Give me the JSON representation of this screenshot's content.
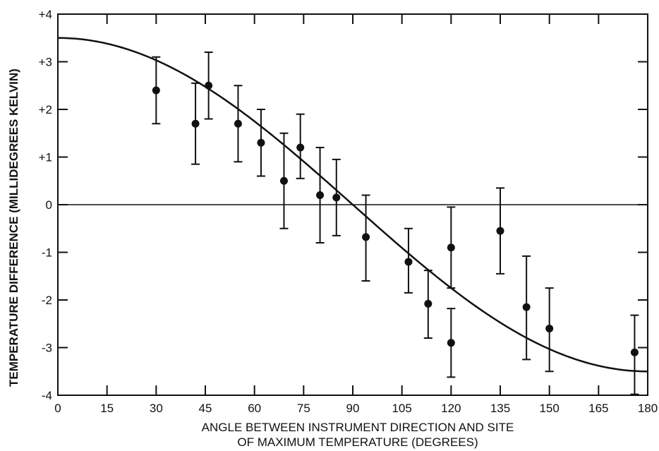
{
  "chart_data": {
    "type": "scatter",
    "title": "",
    "xlabel": [
      "ANGLE BETWEEN INSTRUMENT DIRECTION AND SITE",
      "OF MAXIMUM TEMPERATURE (DEGREES)"
    ],
    "ylabel": "TEMPERATURE DIFFERENCE (MILLIDEGREES KELVIN)",
    "xlim": [
      0,
      180
    ],
    "ylim": [
      -4,
      4
    ],
    "x_ticks": [
      0,
      15,
      30,
      45,
      60,
      75,
      90,
      105,
      120,
      135,
      150,
      165,
      180
    ],
    "x_tick_labels": [
      "0",
      "15",
      "30",
      "45",
      "60",
      "75",
      "90",
      "105",
      "120",
      "135",
      "150",
      "165",
      "180"
    ],
    "y_ticks": [
      4,
      3,
      2,
      1,
      0,
      -1,
      -2,
      -3,
      -4
    ],
    "y_tick_labels": [
      "+4",
      "+3",
      "+2",
      "+1",
      "0",
      "-1",
      "-2",
      "-3",
      "-4"
    ],
    "grid": false,
    "zero_line": true,
    "points": [
      {
        "x": 30,
        "y": 2.4,
        "err_low": 1.7,
        "err_high": 3.1
      },
      {
        "x": 42,
        "y": 1.7,
        "err_low": 0.85,
        "err_high": 2.55
      },
      {
        "x": 46,
        "y": 2.5,
        "err_low": 1.8,
        "err_high": 3.2
      },
      {
        "x": 55,
        "y": 1.7,
        "err_low": 0.9,
        "err_high": 2.5
      },
      {
        "x": 62,
        "y": 1.3,
        "err_low": 0.6,
        "err_high": 2.0
      },
      {
        "x": 69,
        "y": 0.5,
        "err_low": -0.5,
        "err_high": 1.5
      },
      {
        "x": 74,
        "y": 1.2,
        "err_low": 0.55,
        "err_high": 1.9
      },
      {
        "x": 80,
        "y": 0.2,
        "err_low": -0.8,
        "err_high": 1.2
      },
      {
        "x": 85,
        "y": 0.15,
        "err_low": -0.65,
        "err_high": 0.95
      },
      {
        "x": 94,
        "y": -0.68,
        "err_low": -1.6,
        "err_high": 0.2
      },
      {
        "x": 107,
        "y": -1.2,
        "err_low": -1.85,
        "err_high": -0.5
      },
      {
        "x": 113,
        "y": -2.08,
        "err_low": -2.8,
        "err_high": -1.38
      },
      {
        "x": 120,
        "y": -0.9,
        "err_low": -1.75,
        "err_high": -0.05
      },
      {
        "x": 120,
        "y": -2.9,
        "err_low": -3.62,
        "err_high": -2.18
      },
      {
        "x": 135,
        "y": -0.55,
        "err_low": -1.45,
        "err_high": 0.35
      },
      {
        "x": 143,
        "y": -2.15,
        "err_low": -3.25,
        "err_high": -1.08
      },
      {
        "x": 150,
        "y": -2.6,
        "err_low": -3.5,
        "err_high": -1.75
      },
      {
        "x": 176,
        "y": -3.1,
        "err_low": -3.98,
        "err_high": -2.32
      }
    ],
    "fit_curve": {
      "type": "cosine",
      "amplitude": 3.5
    }
  }
}
